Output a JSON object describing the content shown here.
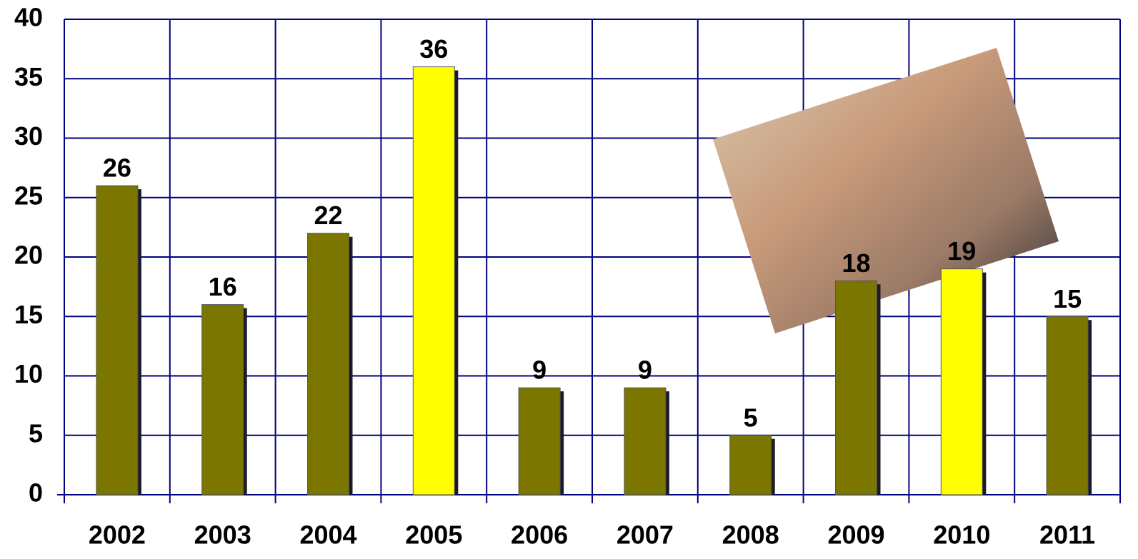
{
  "chart_data": {
    "type": "bar",
    "categories": [
      "2002",
      "2003",
      "2004",
      "2005",
      "2006",
      "2007",
      "2008",
      "2009",
      "2010",
      "2011"
    ],
    "values": [
      26,
      16,
      22,
      36,
      9,
      9,
      5,
      18,
      19,
      15
    ],
    "colors": [
      "#7a7600",
      "#7a7600",
      "#7a7600",
      "#ffff00",
      "#7a7600",
      "#7a7600",
      "#7a7600",
      "#7a7600",
      "#ffff00",
      "#7a7600"
    ],
    "ylim": [
      0,
      40
    ],
    "yticks": [
      0,
      5,
      10,
      15,
      20,
      25,
      30,
      35,
      40
    ],
    "grid": true,
    "grid_color": "#00007f"
  }
}
